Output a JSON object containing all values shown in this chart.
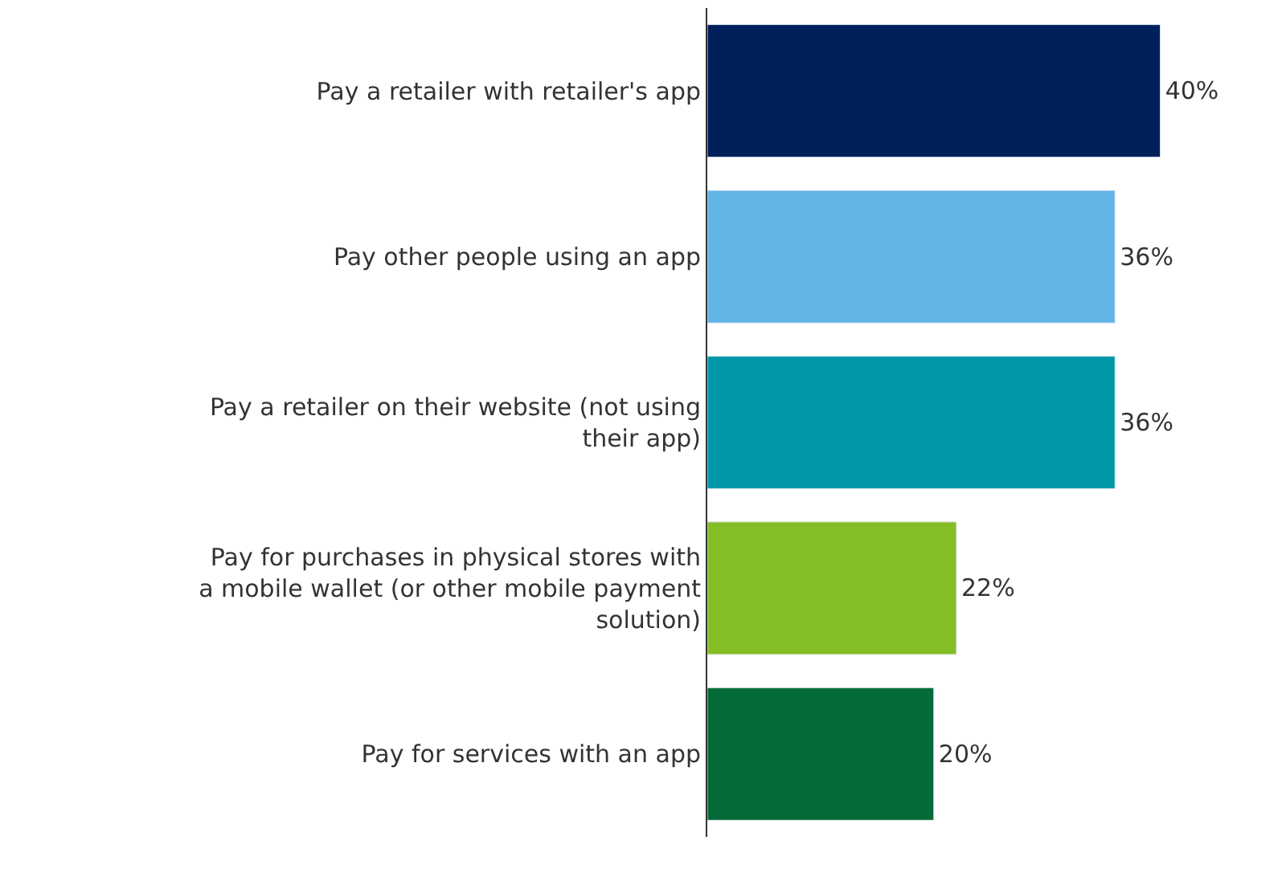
{
  "chart_data": {
    "type": "bar",
    "orientation": "horizontal",
    "categories": [
      "Pay a retailer with retailer's app",
      "Pay other people using an app",
      "Pay a retailer on their website (not using their app)",
      "Pay for purchases in physical stores with a mobile wallet (or other mobile payment solution)",
      "Pay for services with an app"
    ],
    "values": [
      40,
      36,
      36,
      22,
      20
    ],
    "colors": [
      "#00205b",
      "#62b5e5",
      "#0097a9",
      "#84bd26",
      "#046a38"
    ],
    "value_labels": [
      "40%",
      "36%",
      "36%",
      "22%",
      "20%"
    ]
  }
}
